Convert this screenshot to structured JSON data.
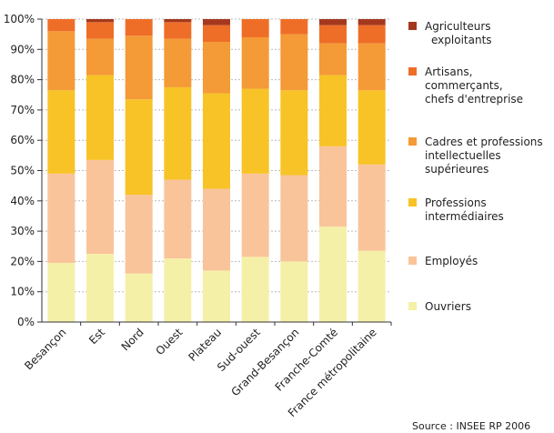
{
  "chart_data": {
    "type": "bar",
    "stacked": true,
    "percent": true,
    "categories": [
      "Besançon",
      "Est",
      "Nord",
      "Ouest",
      "Plateau",
      "Sud-ouest",
      "Grand-Besançon",
      "Franche-Comté",
      "France métropolitaine"
    ],
    "ylim": [
      0,
      100
    ],
    "yticks": [
      "0%",
      "10%",
      "20%",
      "30%",
      "40%",
      "50%",
      "60%",
      "70%",
      "80%",
      "90%",
      "100%"
    ],
    "grid": true,
    "legend": "right",
    "series": [
      {
        "name": "Ouvriers",
        "label_lines": [
          "Ouvriers"
        ],
        "color": "#f5f0a8",
        "values": [
          19.5,
          22.5,
          16,
          21,
          17,
          21.5,
          20,
          31.5,
          23.5
        ]
      },
      {
        "name": "Employés",
        "label_lines": [
          "Employés"
        ],
        "color": "#f9c49a",
        "values": [
          29.5,
          31,
          26,
          26,
          27,
          27.5,
          28.5,
          26.5,
          28.5
        ]
      },
      {
        "name": "Professions intermédiaires",
        "label_lines": [
          "Professions",
          "intermédiaires"
        ],
        "color": "#f8c326",
        "values": [
          27.5,
          28,
          31.5,
          30.5,
          31.5,
          28,
          28,
          23.5,
          24.5
        ]
      },
      {
        "name": "Cadres et professions intellectuelles supérieures",
        "label_lines": [
          "Cadres et professions",
          "intellectuelles",
          "supérieures"
        ],
        "color": "#f49a36",
        "values": [
          19.5,
          12,
          21,
          16,
          17,
          17,
          18.5,
          10.5,
          15.5
        ]
      },
      {
        "name": "Artisans, commerçants, chefs d'entreprise",
        "label_lines": [
          "Artisans,",
          "commerçants,",
          "chefs d'entreprise"
        ],
        "color": "#ef6e27",
        "values": [
          4,
          5.5,
          5.5,
          5.5,
          5.5,
          6,
          5,
          6,
          6
        ]
      },
      {
        "name": "Agriculteurs exploitants",
        "label_lines": [
          "Agriculteurs",
          "exploitants"
        ],
        "color": "#a4381e",
        "values": [
          0,
          1,
          0,
          1,
          2,
          0,
          0,
          2,
          2
        ]
      }
    ],
    "source": "Source : INSEE RP 2006"
  }
}
